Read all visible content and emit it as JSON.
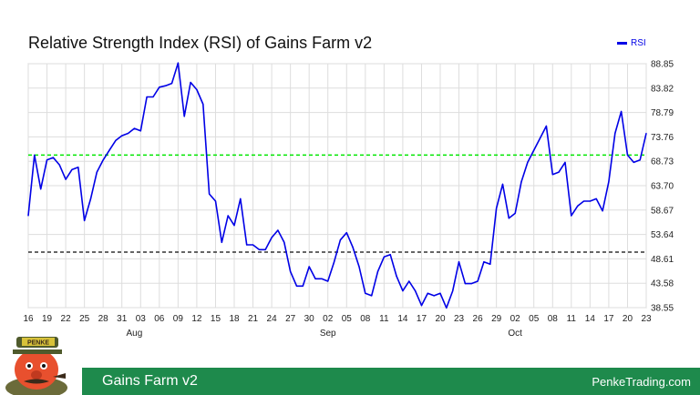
{
  "chart_data": {
    "type": "line",
    "title": "Relative Strength Index (RSI) of Gains Farm v2",
    "xlabel": "",
    "ylabel": "",
    "x_tick_labels": [
      "16",
      "19",
      "22",
      "25",
      "28",
      "31",
      "03",
      "06",
      "09",
      "12",
      "15",
      "18",
      "21",
      "24",
      "27",
      "30",
      "02",
      "05",
      "08",
      "11",
      "14",
      "17",
      "20",
      "23",
      "26",
      "29",
      "02",
      "05",
      "08",
      "11",
      "14",
      "17",
      "20",
      "23"
    ],
    "month_labels": [
      {
        "label": "Aug",
        "x": 17
      },
      {
        "label": "Sep",
        "x": 48
      },
      {
        "label": "Oct",
        "x": 78
      }
    ],
    "y_ticks": [
      "38.55",
      "43.58",
      "48.61",
      "53.64",
      "58.67",
      "63.70",
      "68.73",
      "73.76",
      "78.79",
      "83.82",
      "88.85"
    ],
    "ylim": [
      38.55,
      88.85
    ],
    "xlim": [
      0,
      99
    ],
    "reference_lines": [
      {
        "value": 70,
        "color": "#00e600",
        "style": "dashed"
      },
      {
        "value": 50,
        "color": "#333333",
        "style": "dashed"
      }
    ],
    "grid": true,
    "legend_position": "top-right",
    "series": [
      {
        "name": "RSI",
        "color": "#0000e6",
        "x": [
          0,
          1,
          2,
          3,
          4,
          5,
          6,
          7,
          8,
          9,
          10,
          11,
          12,
          13,
          14,
          15,
          16,
          17,
          18,
          19,
          20,
          21,
          22,
          23,
          24,
          25,
          26,
          27,
          28,
          29,
          30,
          31,
          32,
          33,
          34,
          35,
          36,
          37,
          38,
          39,
          40,
          41,
          42,
          43,
          44,
          45,
          46,
          47,
          48,
          49,
          50,
          51,
          52,
          53,
          54,
          55,
          56,
          57,
          58,
          59,
          60,
          61,
          62,
          63,
          64,
          65,
          66,
          67,
          68,
          69,
          70,
          71,
          72,
          73,
          74,
          75,
          76,
          77,
          78,
          79,
          80,
          81,
          82,
          83,
          84,
          85,
          86,
          87,
          88,
          89,
          90,
          91,
          92,
          93,
          94,
          95,
          96,
          97,
          98,
          99
        ],
        "values": [
          57.5,
          70.0,
          63.0,
          69.0,
          69.5,
          68.0,
          65.0,
          67.0,
          67.5,
          56.5,
          61.0,
          66.5,
          69.0,
          71.0,
          73.0,
          74.0,
          74.5,
          75.5,
          75.0,
          82.0,
          82.0,
          84.0,
          84.3,
          84.8,
          89.0,
          78.0,
          85.0,
          83.5,
          80.5,
          62.0,
          60.5,
          52.0,
          57.5,
          55.5,
          61.0,
          51.5,
          51.5,
          50.5,
          50.5,
          53.0,
          54.5,
          52.0,
          46.0,
          43.0,
          43.0,
          47.0,
          44.5,
          44.5,
          44.0,
          48.0,
          52.5,
          54.0,
          51.0,
          47.0,
          41.5,
          41.0,
          46.0,
          49.0,
          49.5,
          45.0,
          42.0,
          44.0,
          42.0,
          39.0,
          41.5,
          41.0,
          41.5,
          38.5,
          42.0,
          48.0,
          43.5,
          43.5,
          44.0,
          48.0,
          47.5,
          59.0,
          64.0,
          57.0,
          58.0,
          64.5,
          68.5,
          71.0,
          73.5,
          76.0,
          66.0,
          66.5,
          68.5,
          57.5,
          59.5,
          60.5,
          60.5,
          61.0,
          58.5,
          64.5,
          74.5,
          79.0,
          70.0,
          68.5,
          69.0,
          74.5
        ]
      }
    ]
  },
  "legend": {
    "label": "RSI"
  },
  "footer": {
    "title": "Gains Farm v2",
    "site": "PenkeTrading.com"
  },
  "logo": {
    "text": "PENKE"
  }
}
